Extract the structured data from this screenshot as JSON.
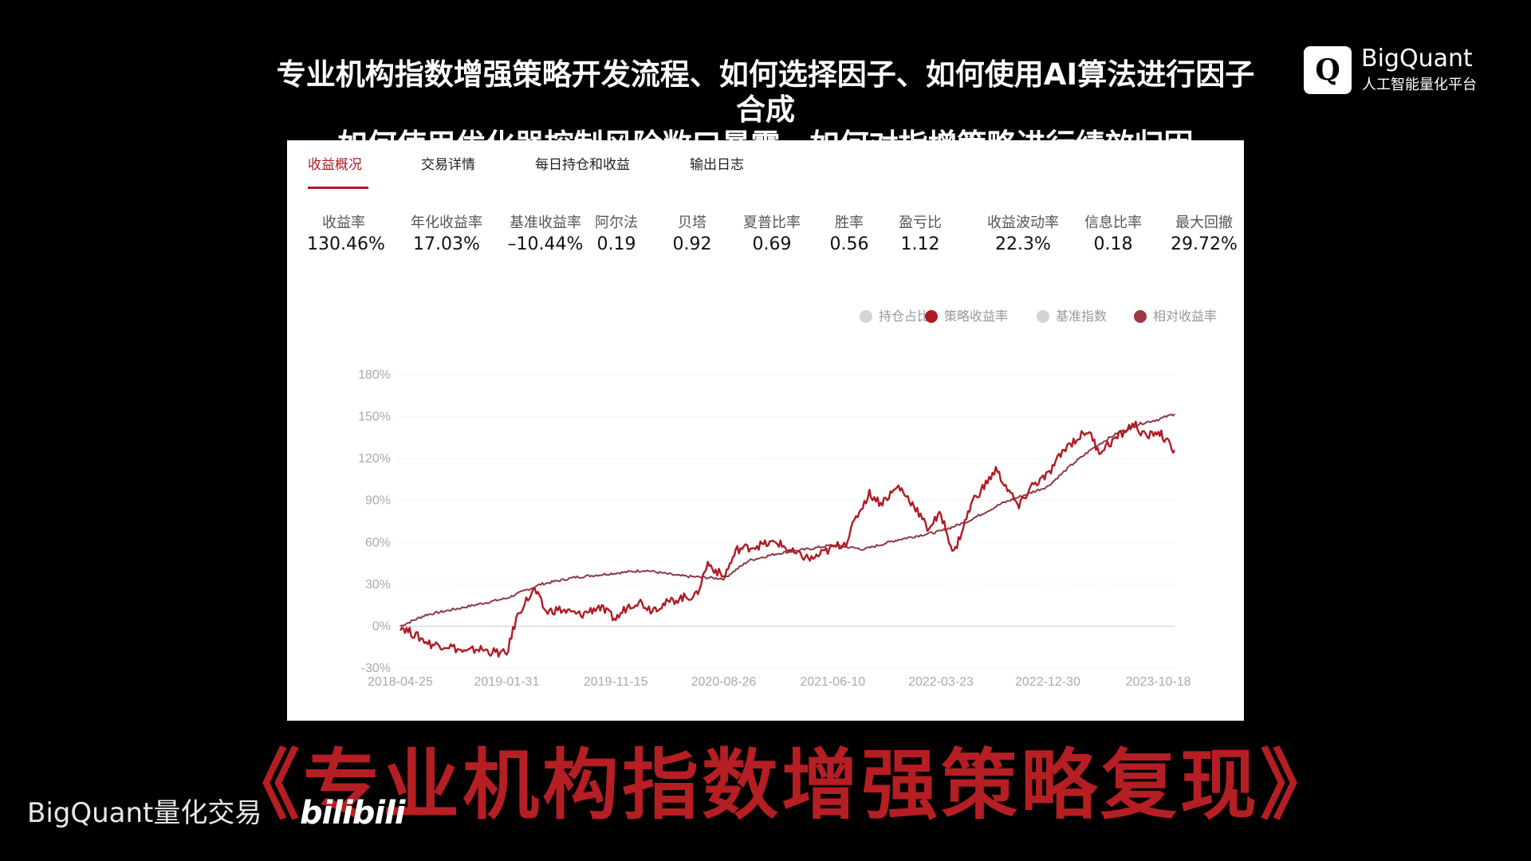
{
  "headline": {
    "line1": "专业机构指数增强策略开发流程、如何选择因子、如何使用AI算法进行因子合成",
    "line2": "如何使用优化器控制风险敞口暴露、如何对指增策略进行绩效归因"
  },
  "logo": {
    "mark": "Q",
    "name": "BigQuant",
    "tagline": "人工智能量化平台"
  },
  "tabs": [
    {
      "label": "收益概况",
      "active": true
    },
    {
      "label": "交易详情"
    },
    {
      "label": "每日持仓和收益"
    },
    {
      "label": "输出日志"
    }
  ],
  "metrics": [
    {
      "label": "收益率",
      "value": "130.46%"
    },
    {
      "label": "年化收益率",
      "value": "17.03%"
    },
    {
      "label": "基准收益率",
      "value": "–10.44%"
    },
    {
      "label": "阿尔法",
      "value": "0.19"
    },
    {
      "label": "贝塔",
      "value": "0.92"
    },
    {
      "label": "夏普比率",
      "value": "0.69"
    },
    {
      "label": "胜率",
      "value": "0.56"
    },
    {
      "label": "盈亏比",
      "value": "1.12"
    },
    {
      "label": "收益波动率",
      "value": "22.3%"
    },
    {
      "label": "信息比率",
      "value": "0.18"
    },
    {
      "label": "最大回撤",
      "value": "29.72%"
    }
  ],
  "legend": [
    {
      "label": "持仓占比",
      "color": "#d4d4d4"
    },
    {
      "label": "策略收益率",
      "color": "#b01a24"
    },
    {
      "label": "基准指数",
      "color": "#d4d4d4"
    },
    {
      "label": "相对收益率",
      "color": "#9a3a44"
    }
  ],
  "colors": {
    "accent": "#b01a24",
    "relative": "#8c3a44",
    "grid": "#e6e6e6"
  },
  "chart_data": {
    "type": "line",
    "y_ticks": [
      "180%",
      "150%",
      "120%",
      "90%",
      "60%",
      "30%",
      "0%",
      "-30%"
    ],
    "y_tick_values": [
      180,
      150,
      120,
      90,
      60,
      30,
      0,
      -30
    ],
    "x_ticks": [
      "2018-04-25",
      "2019-01-31",
      "2019-11-15",
      "2020-08-26",
      "2021-06-10",
      "2022-03-23",
      "2022-12-30",
      "2023-10-18"
    ],
    "ylim": [
      -30,
      180
    ],
    "x_domain": [
      "2018-04-25",
      "2023-11-30"
    ],
    "grid": true,
    "legend_position": "top-right",
    "series": [
      {
        "name": "策略收益率",
        "color": "#b01a24",
        "points": [
          [
            "2018-04-25",
            0
          ],
          [
            "2018-06-01",
            -6
          ],
          [
            "2018-07-15",
            -13
          ],
          [
            "2018-09-01",
            -14
          ],
          [
            "2018-10-15",
            -19
          ],
          [
            "2018-11-15",
            -16
          ],
          [
            "2018-12-15",
            -18
          ],
          [
            "2019-01-31",
            -20
          ],
          [
            "2019-02-25",
            5
          ],
          [
            "2019-03-15",
            15
          ],
          [
            "2019-04-15",
            26
          ],
          [
            "2019-05-15",
            10
          ],
          [
            "2019-06-15",
            12
          ],
          [
            "2019-08-15",
            8
          ],
          [
            "2019-10-01",
            14
          ],
          [
            "2019-11-15",
            5
          ],
          [
            "2019-12-15",
            14
          ],
          [
            "2020-01-15",
            18
          ],
          [
            "2020-02-15",
            12
          ],
          [
            "2020-03-15",
            15
          ],
          [
            "2020-05-01",
            20
          ],
          [
            "2020-06-15",
            22
          ],
          [
            "2020-07-15",
            45
          ],
          [
            "2020-08-26",
            35
          ],
          [
            "2020-10-01",
            55
          ],
          [
            "2020-12-01",
            58
          ],
          [
            "2021-01-15",
            60
          ],
          [
            "2021-03-01",
            52
          ],
          [
            "2021-04-15",
            48
          ],
          [
            "2021-06-10",
            56
          ],
          [
            "2021-07-15",
            60
          ],
          [
            "2021-08-15",
            80
          ],
          [
            "2021-09-15",
            95
          ],
          [
            "2021-10-15",
            88
          ],
          [
            "2021-12-01",
            100
          ],
          [
            "2022-01-15",
            85
          ],
          [
            "2022-02-15",
            70
          ],
          [
            "2022-03-23",
            80
          ],
          [
            "2022-04-26",
            52
          ],
          [
            "2022-06-15",
            90
          ],
          [
            "2022-07-15",
            100
          ],
          [
            "2022-08-15",
            112
          ],
          [
            "2022-10-15",
            85
          ],
          [
            "2022-11-15",
            100
          ],
          [
            "2022-12-30",
            108
          ],
          [
            "2023-02-15",
            128
          ],
          [
            "2023-04-15",
            140
          ],
          [
            "2023-05-15",
            125
          ],
          [
            "2023-07-15",
            138
          ],
          [
            "2023-08-15",
            145
          ],
          [
            "2023-09-15",
            135
          ],
          [
            "2023-10-18",
            140
          ],
          [
            "2023-11-15",
            130
          ],
          [
            "2023-11-30",
            126
          ]
        ]
      },
      {
        "name": "相对收益率",
        "color": "#8c3a44",
        "points": [
          [
            "2018-04-25",
            0
          ],
          [
            "2018-07-01",
            8
          ],
          [
            "2018-10-01",
            13
          ],
          [
            "2019-01-31",
            20
          ],
          [
            "2019-05-01",
            30
          ],
          [
            "2019-08-01",
            35
          ],
          [
            "2019-11-15",
            38
          ],
          [
            "2020-02-01",
            40
          ],
          [
            "2020-05-01",
            36
          ],
          [
            "2020-08-26",
            34
          ],
          [
            "2020-11-01",
            47
          ],
          [
            "2021-01-15",
            52
          ],
          [
            "2021-04-01",
            55
          ],
          [
            "2021-06-10",
            58
          ],
          [
            "2021-09-01",
            55
          ],
          [
            "2021-12-01",
            62
          ],
          [
            "2022-03-23",
            68
          ],
          [
            "2022-06-01",
            75
          ],
          [
            "2022-09-01",
            88
          ],
          [
            "2022-12-30",
            100
          ],
          [
            "2023-03-01",
            115
          ],
          [
            "2023-05-01",
            128
          ],
          [
            "2023-07-01",
            138
          ],
          [
            "2023-09-01",
            145
          ],
          [
            "2023-10-18",
            148
          ],
          [
            "2023-11-30",
            152
          ]
        ]
      }
    ]
  },
  "big_title": "《专业机构指数增强策略复现》",
  "watermark": {
    "name": "BigQuant量化交易",
    "bili": "bilibili"
  }
}
